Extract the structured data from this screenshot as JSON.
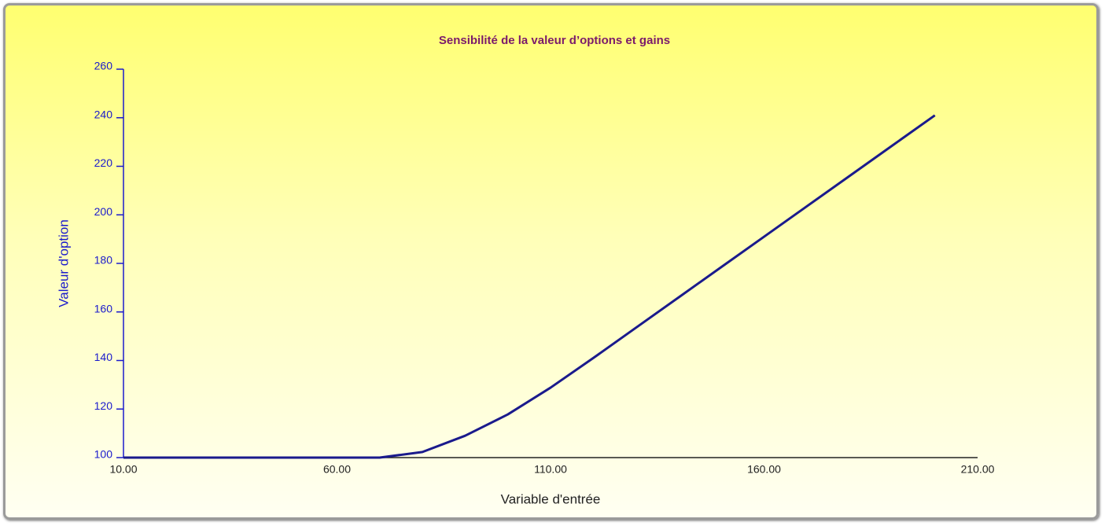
{
  "chart_data": {
    "type": "line",
    "title": "Sensibilité de la valeur d’options et gains",
    "x_label": "Variable d'entrée",
    "y_label": "Valeur d'option",
    "x": [
      10,
      20,
      30,
      40,
      50,
      60,
      70,
      80,
      90,
      100,
      110,
      120,
      130,
      140,
      150,
      160,
      170,
      180,
      190,
      200
    ],
    "series": [
      {
        "name": "Valeur d'option",
        "color": "#1a1a8c",
        "values": [
          100,
          100,
          100,
          100,
          100,
          100,
          100,
          102.3,
          109,
          117.8,
          128.8,
          141,
          153.5,
          166,
          178.5,
          191,
          203.5,
          216,
          228.5,
          241
        ]
      }
    ],
    "xlim": [
      10,
      210
    ],
    "xticks": [
      {
        "value": 10,
        "label": "10.00"
      },
      {
        "value": 60,
        "label": "60.00"
      },
      {
        "value": 110,
        "label": "110.00"
      },
      {
        "value": 160,
        "label": "160.00"
      },
      {
        "value": 210,
        "label": "210.00"
      }
    ],
    "ylim": [
      100,
      260
    ],
    "yticks": [
      100,
      120,
      140,
      160,
      180,
      200,
      220,
      240,
      260
    ],
    "grid": false
  }
}
